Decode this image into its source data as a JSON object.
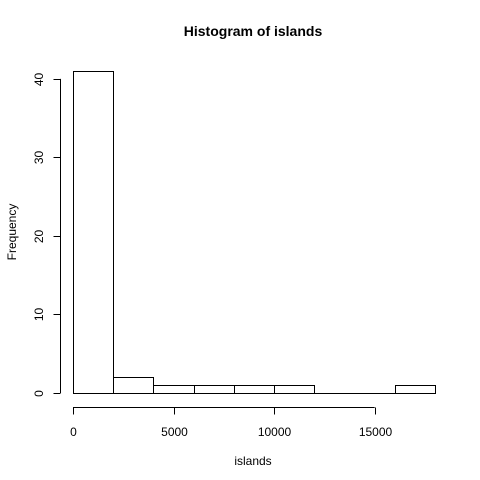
{
  "chart_data": {
    "type": "bar",
    "title": "Histogram of islands",
    "xlabel": "islands",
    "ylabel": "Frequency",
    "bins": [
      {
        "from": 0,
        "to": 2000,
        "count": 41
      },
      {
        "from": 2000,
        "to": 4000,
        "count": 2
      },
      {
        "from": 4000,
        "to": 6000,
        "count": 1
      },
      {
        "from": 6000,
        "to": 8000,
        "count": 1
      },
      {
        "from": 8000,
        "to": 10000,
        "count": 1
      },
      {
        "from": 10000,
        "to": 12000,
        "count": 1
      },
      {
        "from": 12000,
        "to": 14000,
        "count": 0
      },
      {
        "from": 14000,
        "to": 16000,
        "count": 0
      },
      {
        "from": 16000,
        "to": 18000,
        "count": 1
      }
    ],
    "xlim": [
      0,
      18000
    ],
    "ylim": [
      0,
      41
    ],
    "x_ticks": [
      0,
      5000,
      10000,
      15000
    ],
    "x_tick_labels": [
      "0",
      "5000",
      "10000",
      "15000"
    ],
    "y_ticks": [
      0,
      10,
      20,
      30,
      40
    ],
    "y_tick_labels": [
      "0",
      "10",
      "20",
      "30",
      "40"
    ],
    "grid": false,
    "legend": "none",
    "colors": {
      "bar_fill": "#ffffff",
      "bar_stroke": "#000000"
    }
  }
}
